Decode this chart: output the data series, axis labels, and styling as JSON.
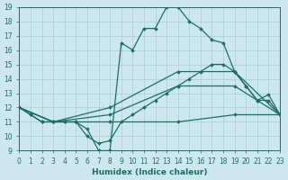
{
  "xlabel": "Humidex (Indice chaleur)",
  "xlim": [
    0,
    23
  ],
  "ylim": [
    9,
    19
  ],
  "xticks": [
    0,
    1,
    2,
    3,
    4,
    5,
    6,
    7,
    8,
    9,
    10,
    11,
    12,
    13,
    14,
    15,
    16,
    17,
    18,
    19,
    20,
    21,
    22,
    23
  ],
  "yticks": [
    9,
    10,
    11,
    12,
    13,
    14,
    15,
    16,
    17,
    18,
    19
  ],
  "bg_color": "#cde8ec",
  "grid_color": "#a8cdd4",
  "line_color": "#1a6e6a",
  "line1_x": [
    0,
    1,
    2,
    3,
    4,
    5,
    6,
    7,
    8,
    9,
    10,
    11,
    12,
    13,
    14,
    15,
    16,
    17,
    18,
    19,
    20,
    21,
    22,
    23
  ],
  "line1_y": [
    12,
    11.5,
    11,
    11,
    11,
    11,
    10.5,
    9,
    9,
    16.5,
    16,
    17.5,
    17.5,
    19,
    19,
    18,
    17.5,
    16.7,
    16.5,
    14.5,
    13.5,
    12.5,
    12.9,
    11.5
  ],
  "line2_x": [
    0,
    1,
    2,
    3,
    4,
    5,
    6,
    7,
    8,
    9,
    10,
    11,
    12,
    13,
    14,
    15,
    16,
    17,
    18,
    19,
    20,
    21,
    22,
    23
  ],
  "line2_y": [
    12,
    11.5,
    11,
    11,
    11,
    11,
    10,
    9.5,
    9.7,
    11,
    11.5,
    12,
    12.5,
    13,
    13.5,
    14,
    14.5,
    15,
    15,
    14.5,
    13.5,
    12.5,
    12.5,
    11.5
  ],
  "line3_x": [
    0,
    3,
    8,
    14,
    19,
    23
  ],
  "line3_y": [
    12,
    11,
    12,
    14.5,
    14.5,
    11.5
  ],
  "line4_x": [
    0,
    3,
    8,
    14,
    19,
    23
  ],
  "line4_y": [
    12,
    11,
    11.5,
    13.5,
    13.5,
    11.5
  ],
  "line5_x": [
    0,
    3,
    8,
    14,
    19,
    23
  ],
  "line5_y": [
    12,
    11,
    11,
    11,
    11.5,
    11.5
  ]
}
